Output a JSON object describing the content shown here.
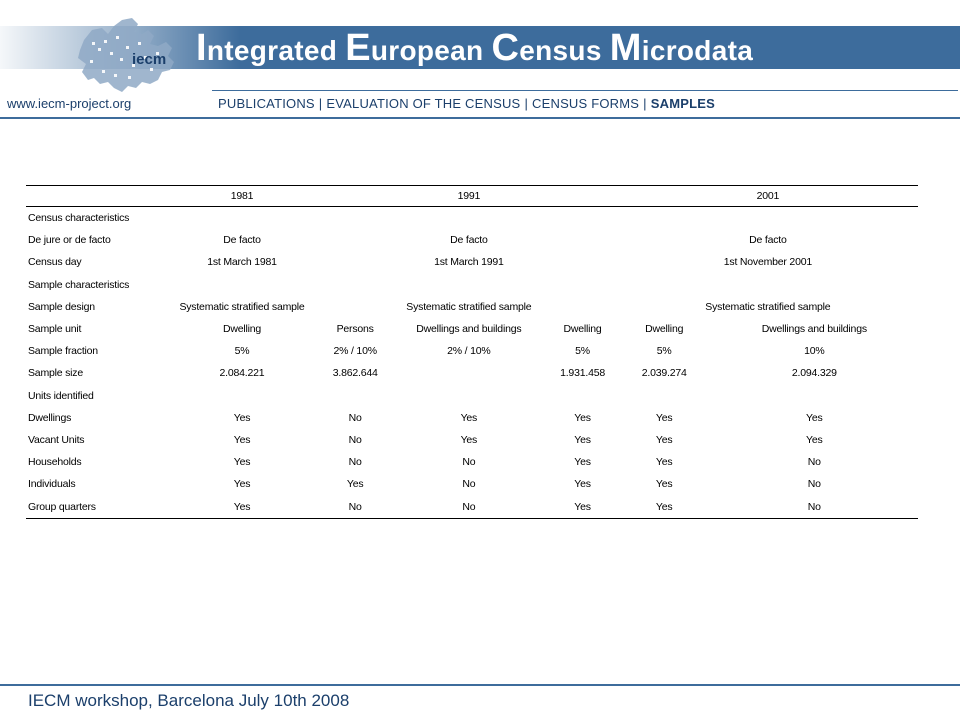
{
  "header": {
    "logo_text": "iecm",
    "title_parts": [
      {
        "cap": "I",
        "rest": "ntegrated "
      },
      {
        "cap": "E",
        "rest": "uropean "
      },
      {
        "cap": "C",
        "rest": "ensus "
      },
      {
        "cap": "M",
        "rest": "icrodata"
      }
    ],
    "site_url": "www.iecm-project.org"
  },
  "nav": {
    "items": [
      {
        "label": "PUBLICATIONS",
        "active": false
      },
      {
        "label": "EVALUATION OF THE CENSUS",
        "active": false
      },
      {
        "label": "CENSUS FORMS",
        "active": false
      },
      {
        "label": "SAMPLES",
        "active": true
      }
    ],
    "separator": "|"
  },
  "table": {
    "years": [
      "1981",
      "1991",
      "2001"
    ],
    "sections": [
      {
        "title": "Census characteristics",
        "rows": [
          {
            "label": "De jure or de facto",
            "type": "span",
            "values": [
              "De facto",
              "De facto",
              "De facto"
            ]
          },
          {
            "label": "Census day",
            "type": "span",
            "values": [
              "1st March 1981",
              "1st March 1991",
              "1st November 2001"
            ]
          }
        ]
      },
      {
        "title": "Sample characteristics",
        "rows": [
          {
            "label": "Sample design",
            "type": "span",
            "values": [
              "Systematic stratified sample",
              "Systematic stratified sample",
              "Systematic stratified sample"
            ]
          },
          {
            "label": "Sample unit",
            "type": "cells",
            "values": [
              "Dwelling",
              "Persons",
              "Dwellings and buildings",
              "Dwelling",
              "Dwelling",
              "Dwellings and buildings"
            ]
          },
          {
            "label": "Sample fraction",
            "type": "cells",
            "values": [
              "5%",
              "2% / 10%",
              "2% / 10%",
              "5%",
              "5%",
              "10%"
            ]
          },
          {
            "label": "Sample size",
            "type": "cells",
            "values": [
              "2.084.221",
              "3.862.644",
              "",
              "1.931.458",
              "2.039.274",
              "2.094.329"
            ]
          }
        ]
      },
      {
        "title": "Units identified",
        "rows": [
          {
            "label": "Dwellings",
            "type": "cells",
            "values": [
              "Yes",
              "No",
              "Yes",
              "Yes",
              "Yes",
              "Yes"
            ]
          },
          {
            "label": "Vacant Units",
            "type": "cells",
            "values": [
              "Yes",
              "No",
              "Yes",
              "Yes",
              "Yes",
              "Yes"
            ]
          },
          {
            "label": "Households",
            "type": "cells",
            "values": [
              "Yes",
              "No",
              "No",
              "Yes",
              "Yes",
              "No"
            ]
          },
          {
            "label": "Individuals",
            "type": "cells",
            "values": [
              "Yes",
              "Yes",
              "No",
              "Yes",
              "Yes",
              "No"
            ]
          },
          {
            "label": "Group quarters",
            "type": "cells",
            "values": [
              "Yes",
              "No",
              "No",
              "Yes",
              "Yes",
              "No"
            ]
          }
        ]
      }
    ]
  },
  "footer": {
    "text": "IECM workshop, Barcelona July 10th 2008"
  },
  "colors": {
    "banner": "#3d6c9c",
    "nav_text": "#1b3f6b"
  }
}
